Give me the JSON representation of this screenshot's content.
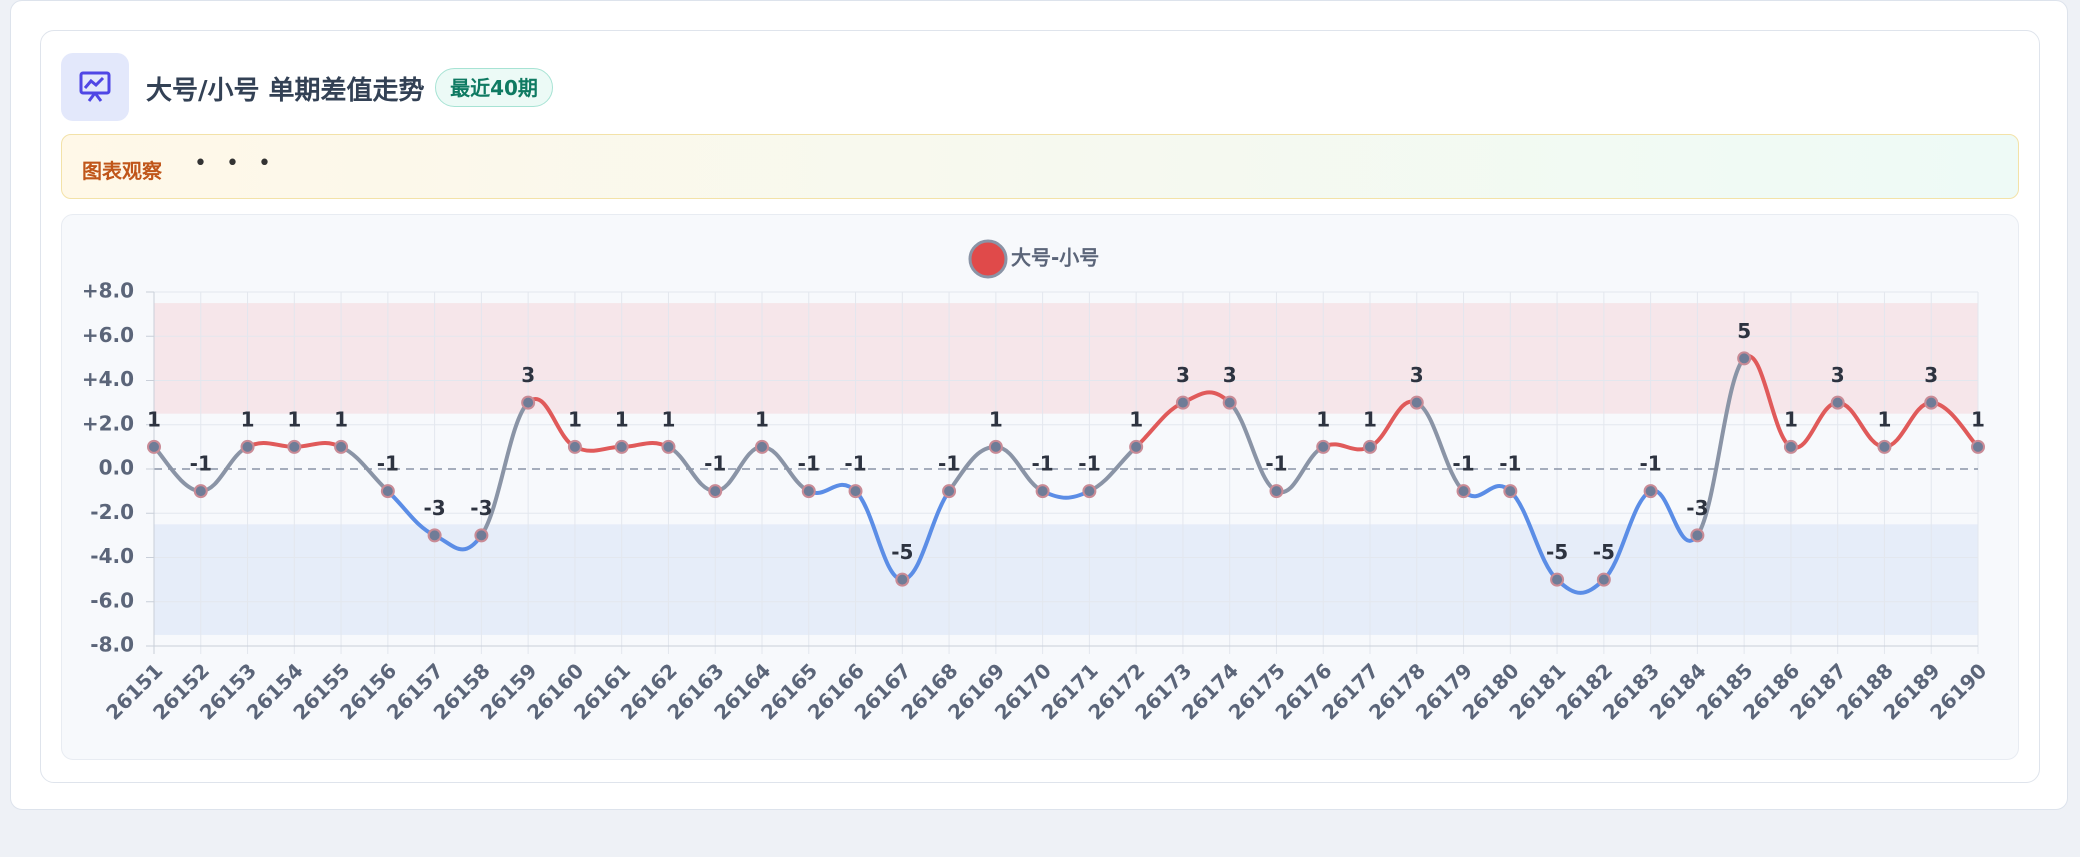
{
  "header": {
    "title": "大号/小号 单期差值走势",
    "badge": "最近40期"
  },
  "banner": {
    "title": "图表观察",
    "more": "• • •"
  },
  "chart_data": {
    "type": "line",
    "categories": [
      "26151",
      "26152",
      "26153",
      "26154",
      "26155",
      "26156",
      "26157",
      "26158",
      "26159",
      "26160",
      "26161",
      "26162",
      "26163",
      "26164",
      "26165",
      "26166",
      "26167",
      "26168",
      "26169",
      "26170",
      "26171",
      "26172",
      "26173",
      "26174",
      "26175",
      "26176",
      "26177",
      "26178",
      "26179",
      "26180",
      "26181",
      "26182",
      "26183",
      "26184",
      "26185",
      "26186",
      "26187",
      "26188",
      "26189",
      "26190"
    ],
    "series": [
      {
        "name": "大号-小号",
        "color": "#e04a4a",
        "values": [
          1,
          -1,
          1,
          1,
          1,
          -1,
          -3,
          -3,
          3,
          1,
          1,
          1,
          -1,
          1,
          -1,
          -1,
          -5,
          -1,
          1,
          -1,
          -1,
          1,
          3,
          3,
          -1,
          1,
          1,
          3,
          -1,
          -1,
          -5,
          -5,
          -1,
          -3,
          5,
          1,
          3,
          1,
          3,
          1
        ]
      }
    ],
    "positive_color": "#e05a5a",
    "negative_color": "#5b8de6",
    "neutral_color": "#8a94a6",
    "bands": [
      {
        "from": 2.5,
        "to": 7.5,
        "color": "#f6e6ea"
      },
      {
        "from": -7.5,
        "to": -2.5,
        "color": "#e6edf9"
      }
    ],
    "ylim": [
      -8,
      8
    ],
    "yticks": [
      {
        "value": 8,
        "label": "+8.0"
      },
      {
        "value": 6,
        "label": "+6.0"
      },
      {
        "value": 4,
        "label": "+4.0"
      },
      {
        "value": 2,
        "label": "+2.0"
      },
      {
        "value": 0,
        "label": "0.0"
      },
      {
        "value": -2,
        "label": "-2.0"
      },
      {
        "value": -4,
        "label": "-4.0"
      },
      {
        "value": -6,
        "label": "-6.0"
      },
      {
        "value": -8,
        "label": "-8.0"
      }
    ],
    "grid": true
  }
}
